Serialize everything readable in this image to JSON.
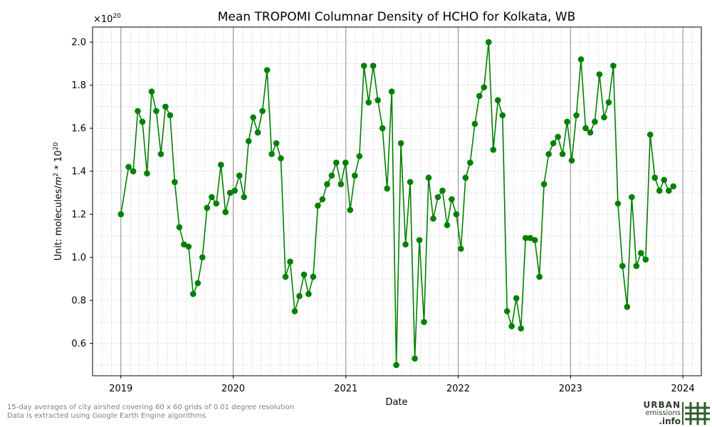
{
  "chart_data": {
    "type": "line",
    "title": "Mean TROPOMI Columnar Density of HCHO for Kolkata, WB",
    "xlabel": "Date",
    "ylabel": "Unit: molecules/m² * 10²⁰",
    "ylabel_parts": {
      "prefix": "Unit: molecules/",
      "m": "m",
      "m_exp": "2",
      "suffix": " * 10",
      "exp": "20"
    },
    "offset_text": {
      "base": "×10",
      "exp": "20"
    },
    "ylim": [
      0.45,
      2.07
    ],
    "yticks": [
      0.6,
      0.8,
      1.0,
      1.2,
      1.4,
      1.6,
      1.8,
      2.0
    ],
    "ytick_labels": [
      "0.6",
      "0.8",
      "1.0",
      "1.2",
      "1.4",
      "1.6",
      "1.8",
      "2.0"
    ],
    "xlim": [
      "2018-10-01",
      "2024-03-01"
    ],
    "xticks": [
      "2019-01-01",
      "2020-01-01",
      "2021-01-01",
      "2022-01-01",
      "2023-01-01",
      "2024-01-01"
    ],
    "xtick_labels": [
      "2019",
      "2020",
      "2021",
      "2022",
      "2023",
      "2024"
    ],
    "grid": true,
    "year_lines": true,
    "color": "#008000",
    "marker": "circle",
    "series": [
      {
        "points": [
          [
            "2019-01-01",
            1.2
          ],
          [
            "2019-01-26",
            1.42
          ],
          [
            "2019-02-10",
            1.4
          ],
          [
            "2019-02-25",
            1.68
          ],
          [
            "2019-03-12",
            1.63
          ],
          [
            "2019-03-27",
            1.39
          ],
          [
            "2019-04-11",
            1.77
          ],
          [
            "2019-04-26",
            1.68
          ],
          [
            "2019-05-11",
            1.48
          ],
          [
            "2019-05-26",
            1.7
          ],
          [
            "2019-06-10",
            1.66
          ],
          [
            "2019-06-25",
            1.35
          ],
          [
            "2019-07-10",
            1.14
          ],
          [
            "2019-07-25",
            1.06
          ],
          [
            "2019-08-09",
            1.05
          ],
          [
            "2019-08-24",
            0.83
          ],
          [
            "2019-09-08",
            0.88
          ],
          [
            "2019-09-23",
            1.0
          ],
          [
            "2019-10-08",
            1.23
          ],
          [
            "2019-10-23",
            1.28
          ],
          [
            "2019-11-07",
            1.25
          ],
          [
            "2019-11-22",
            1.43
          ],
          [
            "2019-12-07",
            1.21
          ],
          [
            "2019-12-22",
            1.3
          ],
          [
            "2020-01-06",
            1.31
          ],
          [
            "2020-01-21",
            1.38
          ],
          [
            "2020-02-05",
            1.28
          ],
          [
            "2020-02-20",
            1.54
          ],
          [
            "2020-03-06",
            1.65
          ],
          [
            "2020-03-21",
            1.58
          ],
          [
            "2020-04-05",
            1.68
          ],
          [
            "2020-04-20",
            1.87
          ],
          [
            "2020-05-05",
            1.48
          ],
          [
            "2020-05-20",
            1.53
          ],
          [
            "2020-06-04",
            1.46
          ],
          [
            "2020-06-19",
            0.91
          ],
          [
            "2020-07-04",
            0.98
          ],
          [
            "2020-07-19",
            0.75
          ],
          [
            "2020-08-03",
            0.82
          ],
          [
            "2020-08-18",
            0.92
          ],
          [
            "2020-09-02",
            0.83
          ],
          [
            "2020-09-17",
            0.91
          ],
          [
            "2020-10-02",
            1.24
          ],
          [
            "2020-10-17",
            1.27
          ],
          [
            "2020-11-01",
            1.34
          ],
          [
            "2020-11-16",
            1.38
          ],
          [
            "2020-12-01",
            1.44
          ],
          [
            "2020-12-16",
            1.34
          ],
          [
            "2020-12-31",
            1.44
          ],
          [
            "2021-01-15",
            1.22
          ],
          [
            "2021-01-30",
            1.38
          ],
          [
            "2021-02-14",
            1.47
          ],
          [
            "2021-03-01",
            1.89
          ],
          [
            "2021-03-16",
            1.72
          ],
          [
            "2021-03-31",
            1.89
          ],
          [
            "2021-04-15",
            1.73
          ],
          [
            "2021-04-30",
            1.6
          ],
          [
            "2021-05-15",
            1.32
          ],
          [
            "2021-05-30",
            1.77
          ],
          [
            "2021-06-14",
            0.5
          ],
          [
            "2021-06-29",
            1.53
          ],
          [
            "2021-07-14",
            1.06
          ],
          [
            "2021-07-29",
            1.35
          ],
          [
            "2021-08-13",
            0.53
          ],
          [
            "2021-08-28",
            1.08
          ],
          [
            "2021-09-12",
            0.7
          ],
          [
            "2021-09-27",
            1.37
          ],
          [
            "2021-10-12",
            1.18
          ],
          [
            "2021-10-27",
            1.28
          ],
          [
            "2021-11-11",
            1.31
          ],
          [
            "2021-11-26",
            1.15
          ],
          [
            "2021-12-11",
            1.27
          ],
          [
            "2021-12-26",
            1.2
          ],
          [
            "2022-01-10",
            1.04
          ],
          [
            "2022-01-25",
            1.37
          ],
          [
            "2022-02-09",
            1.44
          ],
          [
            "2022-02-24",
            1.62
          ],
          [
            "2022-03-11",
            1.75
          ],
          [
            "2022-03-26",
            1.79
          ],
          [
            "2022-04-10",
            2.0
          ],
          [
            "2022-04-25",
            1.5
          ],
          [
            "2022-05-10",
            1.73
          ],
          [
            "2022-05-25",
            1.66
          ],
          [
            "2022-06-09",
            0.75
          ],
          [
            "2022-06-24",
            0.68
          ],
          [
            "2022-07-09",
            0.81
          ],
          [
            "2022-07-24",
            0.67
          ],
          [
            "2022-08-08",
            1.09
          ],
          [
            "2022-08-23",
            1.09
          ],
          [
            "2022-09-07",
            1.08
          ],
          [
            "2022-09-22",
            0.91
          ],
          [
            "2022-10-07",
            1.34
          ],
          [
            "2022-10-22",
            1.48
          ],
          [
            "2022-11-06",
            1.53
          ],
          [
            "2022-11-21",
            1.56
          ],
          [
            "2022-12-06",
            1.48
          ],
          [
            "2022-12-21",
            1.63
          ],
          [
            "2023-01-05",
            1.45
          ],
          [
            "2023-01-20",
            1.66
          ],
          [
            "2023-02-04",
            1.92
          ],
          [
            "2023-02-19",
            1.6
          ],
          [
            "2023-03-06",
            1.58
          ],
          [
            "2023-03-21",
            1.63
          ],
          [
            "2023-04-05",
            1.85
          ],
          [
            "2023-04-20",
            1.65
          ],
          [
            "2023-05-05",
            1.72
          ],
          [
            "2023-05-20",
            1.89
          ],
          [
            "2023-06-04",
            1.25
          ],
          [
            "2023-06-19",
            0.96
          ],
          [
            "2023-07-04",
            0.77
          ],
          [
            "2023-07-19",
            1.28
          ],
          [
            "2023-08-03",
            0.96
          ],
          [
            "2023-08-18",
            1.02
          ],
          [
            "2023-09-02",
            0.99
          ],
          [
            "2023-09-17",
            1.57
          ],
          [
            "2023-10-02",
            1.37
          ],
          [
            "2023-10-17",
            1.31
          ],
          [
            "2023-11-01",
            1.36
          ],
          [
            "2023-11-16",
            1.31
          ],
          [
            "2023-12-01",
            1.33
          ]
        ]
      }
    ]
  },
  "footnote": {
    "line1": "15-day averages of city airshed covering 60 x 60 grids of 0.01 degree resolution",
    "line2": "Data is extracted using Google Earth Engine algorithms"
  },
  "logo": {
    "line1": "URBAN",
    "line2": "emissions",
    "line3": ".info"
  }
}
